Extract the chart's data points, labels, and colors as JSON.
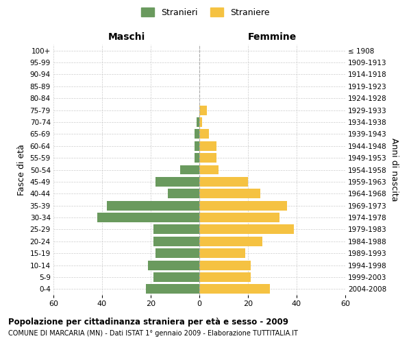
{
  "age_groups": [
    "0-4",
    "5-9",
    "10-14",
    "15-19",
    "20-24",
    "25-29",
    "30-34",
    "35-39",
    "40-44",
    "45-49",
    "50-54",
    "55-59",
    "60-64",
    "65-69",
    "70-74",
    "75-79",
    "80-84",
    "85-89",
    "90-94",
    "95-99",
    "100+"
  ],
  "birth_years": [
    "2004-2008",
    "1999-2003",
    "1994-1998",
    "1989-1993",
    "1984-1988",
    "1979-1983",
    "1974-1978",
    "1969-1973",
    "1964-1968",
    "1959-1963",
    "1954-1958",
    "1949-1953",
    "1944-1948",
    "1939-1943",
    "1934-1938",
    "1929-1933",
    "1924-1928",
    "1919-1923",
    "1914-1918",
    "1909-1913",
    "≤ 1908"
  ],
  "males": [
    22,
    19,
    21,
    18,
    19,
    19,
    42,
    38,
    13,
    18,
    8,
    2,
    2,
    2,
    1,
    0,
    0,
    0,
    0,
    0,
    0
  ],
  "females": [
    29,
    21,
    21,
    19,
    26,
    39,
    33,
    36,
    25,
    20,
    8,
    7,
    7,
    4,
    1,
    3,
    0,
    0,
    0,
    0,
    0
  ],
  "male_color": "#6a9a5e",
  "female_color": "#f5c242",
  "background_color": "#ffffff",
  "grid_color": "#cccccc",
  "title": "Popolazione per cittadinanza straniera per età e sesso - 2009",
  "subtitle": "COMUNE DI MARCARIA (MN) - Dati ISTAT 1° gennaio 2009 - Elaborazione TUTTITALIA.IT",
  "xlabel_left": "Maschi",
  "xlabel_right": "Femmine",
  "ylabel_left": "Fasce di età",
  "ylabel_right": "Anni di nascita",
  "xlim": 60,
  "legend_stranieri": "Stranieri",
  "legend_straniere": "Straniere"
}
